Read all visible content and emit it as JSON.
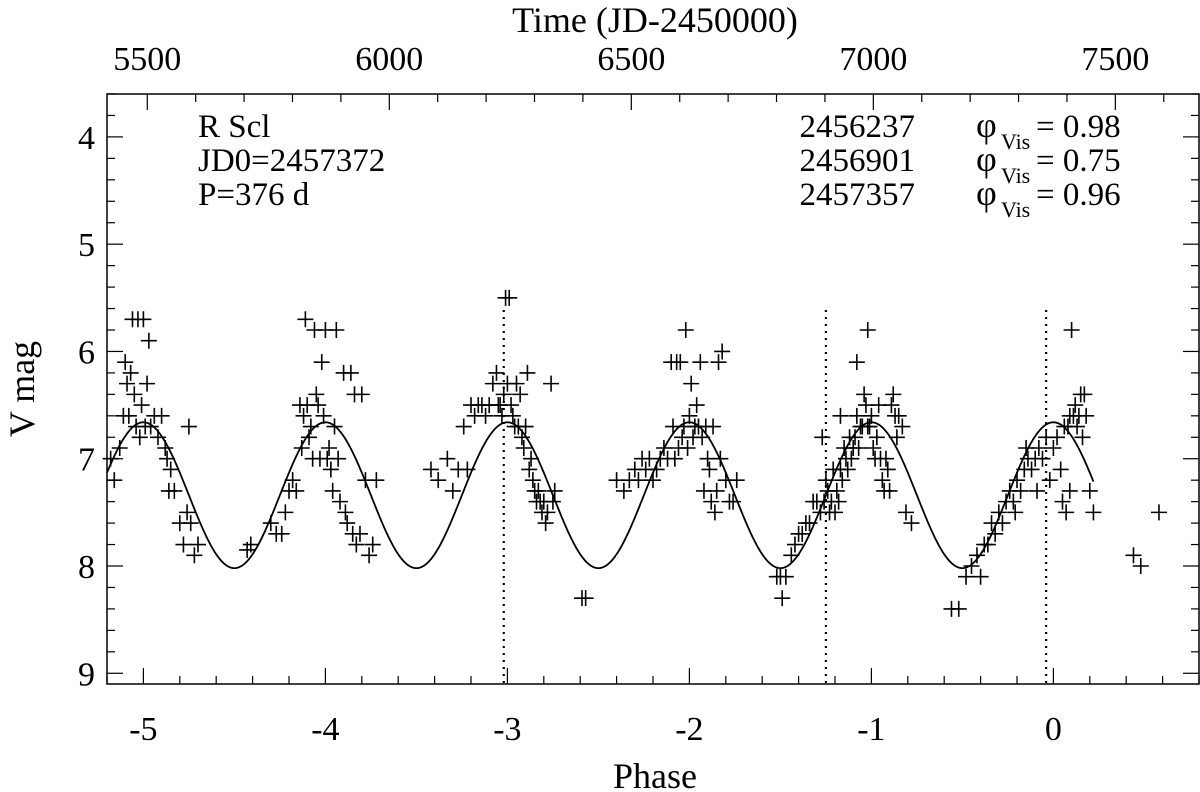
{
  "chart_data": {
    "type": "scatter",
    "title": "",
    "xlabel": "Phase",
    "ylabel": "V mag",
    "top_xlabel": "Time (JD-2450000)",
    "xlim": [
      -5.2,
      0.8
    ],
    "ylim": [
      9.1,
      3.6
    ],
    "x_ticks": [
      -5,
      -4,
      -3,
      -2,
      -1,
      0
    ],
    "x_tick_labels": [
      "-5",
      "-4",
      "-3",
      "-2",
      "-1",
      "0"
    ],
    "y_ticks": [
      4,
      5,
      6,
      7,
      8,
      9
    ],
    "y_tick_labels": [
      "4",
      "5",
      "6",
      "7",
      "8",
      "9"
    ],
    "top_ticks": [
      5500,
      6000,
      6500,
      7000,
      7500
    ],
    "top_tick_labels": [
      "5500",
      "6000",
      "6500",
      "7000",
      "7500"
    ],
    "top_axis_map": {
      "jd_at_phase0": 7372,
      "period_days": 376
    },
    "info_left": [
      "R Scl",
      "JD0=2457372",
      "P=376 d"
    ],
    "epochs": [
      {
        "jd": "2456237",
        "phi_symbol": "φ",
        "phi_sub": "Vis",
        "phi_value": "= 0.98",
        "phase": -3.02
      },
      {
        "jd": "2456901",
        "phi_symbol": "φ",
        "phi_sub": "Vis",
        "phi_value": "= 0.75",
        "phase": -1.25
      },
      {
        "jd": "2457357",
        "phi_symbol": "φ",
        "phi_sub": "Vis",
        "phi_value": "= 0.96",
        "phase": -0.04
      }
    ],
    "model_curve": {
      "mean": 7.34,
      "amplitude": 0.68,
      "phase_min_mag": 0.0,
      "x_range": [
        -5.2,
        0.22
      ]
    },
    "series": [
      {
        "name": "V observations",
        "marker": "plus",
        "points": [
          [
            -5.18,
            7.0
          ],
          [
            -5.16,
            7.2
          ],
          [
            -5.13,
            6.9
          ],
          [
            -5.11,
            6.6
          ],
          [
            -5.1,
            6.1
          ],
          [
            -5.09,
            6.3
          ],
          [
            -5.08,
            6.6
          ],
          [
            -5.07,
            6.2
          ],
          [
            -5.06,
            5.7
          ],
          [
            -5.05,
            6.4
          ],
          [
            -5.04,
            6.7
          ],
          [
            -5.03,
            5.7
          ],
          [
            -5.02,
            6.8
          ],
          [
            -5.01,
            6.5
          ],
          [
            -5.0,
            5.7
          ],
          [
            -4.99,
            6.7
          ],
          [
            -4.98,
            6.3
          ],
          [
            -4.97,
            5.9
          ],
          [
            -4.96,
            6.7
          ],
          [
            -4.94,
            6.6
          ],
          [
            -4.92,
            6.8
          ],
          [
            -4.9,
            6.6
          ],
          [
            -4.88,
            6.9
          ],
          [
            -4.87,
            7.0
          ],
          [
            -4.86,
            7.3
          ],
          [
            -4.85,
            7.1
          ],
          [
            -4.83,
            7.3
          ],
          [
            -4.8,
            7.6
          ],
          [
            -4.78,
            7.8
          ],
          [
            -4.76,
            7.5
          ],
          [
            -4.75,
            6.7
          ],
          [
            -4.74,
            7.6
          ],
          [
            -4.72,
            7.9
          ],
          [
            -4.7,
            7.8
          ],
          [
            -4.43,
            7.85
          ],
          [
            -4.41,
            7.8
          ],
          [
            -4.3,
            7.6
          ],
          [
            -4.27,
            7.7
          ],
          [
            -4.24,
            7.7
          ],
          [
            -4.22,
            7.5
          ],
          [
            -4.2,
            7.3
          ],
          [
            -4.18,
            7.2
          ],
          [
            -4.16,
            7.3
          ],
          [
            -4.14,
            6.5
          ],
          [
            -4.13,
            6.9
          ],
          [
            -4.12,
            6.6
          ],
          [
            -4.11,
            5.7
          ],
          [
            -4.1,
            6.5
          ],
          [
            -4.09,
            6.8
          ],
          [
            -4.08,
            6.7
          ],
          [
            -4.07,
            7.0
          ],
          [
            -4.06,
            5.8
          ],
          [
            -4.05,
            6.4
          ],
          [
            -4.04,
            6.5
          ],
          [
            -4.03,
            7.0
          ],
          [
            -4.02,
            6.1
          ],
          [
            -4.01,
            6.6
          ],
          [
            -4.0,
            5.8
          ],
          [
            -3.99,
            7.0
          ],
          [
            -3.98,
            6.9
          ],
          [
            -3.97,
            7.1
          ],
          [
            -3.96,
            7.3
          ],
          [
            -3.95,
            6.7
          ],
          [
            -3.94,
            5.8
          ],
          [
            -3.93,
            7.0
          ],
          [
            -3.92,
            7.4
          ],
          [
            -3.9,
            6.2
          ],
          [
            -3.89,
            7.5
          ],
          [
            -3.88,
            7.6
          ],
          [
            -3.86,
            6.2
          ],
          [
            -3.85,
            7.7
          ],
          [
            -3.84,
            6.4
          ],
          [
            -3.83,
            7.8
          ],
          [
            -3.81,
            7.7
          ],
          [
            -3.8,
            6.4
          ],
          [
            -3.78,
            7.2
          ],
          [
            -3.76,
            7.9
          ],
          [
            -3.74,
            7.8
          ],
          [
            -3.72,
            7.2
          ],
          [
            -3.42,
            7.1
          ],
          [
            -3.38,
            7.2
          ],
          [
            -3.33,
            7.0
          ],
          [
            -3.3,
            7.3
          ],
          [
            -3.27,
            7.1
          ],
          [
            -3.24,
            6.7
          ],
          [
            -3.22,
            7.1
          ],
          [
            -3.2,
            6.5
          ],
          [
            -3.18,
            6.6
          ],
          [
            -3.16,
            6.5
          ],
          [
            -3.14,
            6.5
          ],
          [
            -3.12,
            6.6
          ],
          [
            -3.1,
            6.5
          ],
          [
            -3.08,
            6.3
          ],
          [
            -3.06,
            6.2
          ],
          [
            -3.05,
            6.5
          ],
          [
            -3.04,
            6.5
          ],
          [
            -3.03,
            6.6
          ],
          [
            -3.02,
            6.4
          ],
          [
            -3.01,
            5.5
          ],
          [
            -3.0,
            6.3
          ],
          [
            -2.99,
            5.5
          ],
          [
            -2.98,
            6.5
          ],
          [
            -2.97,
            6.6
          ],
          [
            -2.96,
            6.7
          ],
          [
            -2.95,
            6.3
          ],
          [
            -2.94,
            6.7
          ],
          [
            -2.93,
            6.4
          ],
          [
            -2.92,
            6.8
          ],
          [
            -2.91,
            6.9
          ],
          [
            -2.9,
            6.7
          ],
          [
            -2.89,
            6.2
          ],
          [
            -2.88,
            7.1
          ],
          [
            -2.87,
            7.0
          ],
          [
            -2.86,
            7.2
          ],
          [
            -2.85,
            7.3
          ],
          [
            -2.84,
            7.4
          ],
          [
            -2.83,
            7.3
          ],
          [
            -2.82,
            7.4
          ],
          [
            -2.81,
            7.5
          ],
          [
            -2.8,
            7.4
          ],
          [
            -2.79,
            7.6
          ],
          [
            -2.78,
            7.5
          ],
          [
            -2.76,
            6.3
          ],
          [
            -2.75,
            7.4
          ],
          [
            -2.74,
            7.3
          ],
          [
            -2.59,
            8.3
          ],
          [
            -2.57,
            8.3
          ],
          [
            -2.4,
            7.2
          ],
          [
            -2.36,
            7.3
          ],
          [
            -2.33,
            7.2
          ],
          [
            -2.3,
            7.1
          ],
          [
            -2.28,
            7.2
          ],
          [
            -2.26,
            7.0
          ],
          [
            -2.24,
            7.1
          ],
          [
            -2.22,
            7.0
          ],
          [
            -2.2,
            7.2
          ],
          [
            -2.18,
            7.1
          ],
          [
            -2.16,
            7.0
          ],
          [
            -2.14,
            6.9
          ],
          [
            -2.12,
            7.0
          ],
          [
            -2.1,
            6.1
          ],
          [
            -2.09,
            6.7
          ],
          [
            -2.08,
            7.0
          ],
          [
            -2.07,
            6.1
          ],
          [
            -2.06,
            6.9
          ],
          [
            -2.05,
            6.1
          ],
          [
            -2.04,
            6.8
          ],
          [
            -2.03,
            6.7
          ],
          [
            -2.02,
            5.8
          ],
          [
            -2.01,
            6.9
          ],
          [
            -2.0,
            6.6
          ],
          [
            -1.99,
            6.3
          ],
          [
            -1.98,
            6.8
          ],
          [
            -1.97,
            6.7
          ],
          [
            -1.96,
            6.5
          ],
          [
            -1.95,
            6.7
          ],
          [
            -1.94,
            6.1
          ],
          [
            -1.93,
            6.8
          ],
          [
            -1.92,
            7.3
          ],
          [
            -1.91,
            6.7
          ],
          [
            -1.9,
            7.0
          ],
          [
            -1.89,
            7.1
          ],
          [
            -1.88,
            7.4
          ],
          [
            -1.87,
            6.7
          ],
          [
            -1.86,
            7.5
          ],
          [
            -1.85,
            7.3
          ],
          [
            -1.84,
            6.1
          ],
          [
            -1.83,
            7.0
          ],
          [
            -1.82,
            6.0
          ],
          [
            -1.8,
            7.2
          ],
          [
            -1.78,
            7.4
          ],
          [
            -1.76,
            7.4
          ],
          [
            -1.74,
            7.2
          ],
          [
            -1.52,
            8.1
          ],
          [
            -1.5,
            8.1
          ],
          [
            -1.47,
            8.1
          ],
          [
            -1.44,
            7.9
          ],
          [
            -1.42,
            7.8
          ],
          [
            -1.4,
            7.7
          ],
          [
            -1.38,
            7.7
          ],
          [
            -1.36,
            7.6
          ],
          [
            -1.34,
            7.6
          ],
          [
            -1.32,
            7.4
          ],
          [
            -1.3,
            7.4
          ],
          [
            -1.28,
            7.5
          ],
          [
            -1.27,
            6.8
          ],
          [
            -1.26,
            7.4
          ],
          [
            -1.25,
            7.2
          ],
          [
            -1.24,
            7.3
          ],
          [
            -1.23,
            7.5
          ],
          [
            -1.22,
            7.4
          ],
          [
            -1.21,
            7.1
          ],
          [
            -1.2,
            7.5
          ],
          [
            -1.19,
            7.3
          ],
          [
            -1.18,
            7.4
          ],
          [
            -1.17,
            7.1
          ],
          [
            -1.16,
            7.2
          ],
          [
            -1.15,
            6.9
          ],
          [
            -1.14,
            7.0
          ],
          [
            -1.13,
            7.1
          ],
          [
            -1.12,
            6.8
          ],
          [
            -1.11,
            7.0
          ],
          [
            -1.1,
            6.9
          ],
          [
            -1.09,
            6.8
          ],
          [
            -1.08,
            6.6
          ],
          [
            -1.07,
            6.9
          ],
          [
            -1.06,
            6.7
          ],
          [
            -1.05,
            6.7
          ],
          [
            -1.04,
            6.4
          ],
          [
            -1.03,
            6.5
          ],
          [
            -1.02,
            6.7
          ],
          [
            -1.01,
            6.7
          ],
          [
            -1.0,
            6.6
          ],
          [
            -0.99,
            6.9
          ],
          [
            -0.98,
            7.0
          ],
          [
            -0.97,
            6.8
          ],
          [
            -0.96,
            6.5
          ],
          [
            -0.95,
            7.0
          ],
          [
            -0.94,
            7.2
          ],
          [
            -0.93,
            7.3
          ],
          [
            -0.92,
            7.0
          ],
          [
            -0.91,
            7.1
          ],
          [
            -0.9,
            7.3
          ],
          [
            -0.89,
            6.5
          ],
          [
            -0.88,
            6.4
          ],
          [
            -0.87,
            6.6
          ],
          [
            -0.86,
            6.8
          ],
          [
            -0.85,
            6.6
          ],
          [
            -0.83,
            6.7
          ],
          [
            -0.81,
            7.5
          ],
          [
            -0.78,
            7.6
          ],
          [
            -1.49,
            8.3
          ],
          [
            -1.17,
            6.6
          ],
          [
            -1.08,
            6.1
          ],
          [
            -1.02,
            5.8
          ],
          [
            -0.56,
            8.4
          ],
          [
            -0.52,
            8.4
          ],
          [
            -0.48,
            8.1
          ],
          [
            -0.45,
            8.0
          ],
          [
            -0.42,
            7.9
          ],
          [
            -0.4,
            8.1
          ],
          [
            -0.38,
            7.8
          ],
          [
            -0.36,
            7.8
          ],
          [
            -0.34,
            7.6
          ],
          [
            -0.32,
            7.7
          ],
          [
            -0.3,
            7.5
          ],
          [
            -0.28,
            7.6
          ],
          [
            -0.26,
            7.4
          ],
          [
            -0.24,
            7.3
          ],
          [
            -0.22,
            7.4
          ],
          [
            -0.2,
            7.2
          ],
          [
            -0.18,
            7.3
          ],
          [
            -0.16,
            7.1
          ],
          [
            -0.14,
            7.0
          ],
          [
            -0.12,
            7.1
          ],
          [
            -0.1,
            7.0
          ],
          [
            -0.08,
            6.9
          ],
          [
            -0.06,
            7.0
          ],
          [
            -0.04,
            6.8
          ],
          [
            -0.02,
            7.2
          ],
          [
            0.0,
            6.9
          ],
          [
            0.02,
            6.8
          ],
          [
            0.04,
            7.1
          ],
          [
            0.05,
            7.4
          ],
          [
            0.06,
            6.7
          ],
          [
            0.07,
            7.5
          ],
          [
            0.08,
            6.7
          ],
          [
            0.09,
            6.6
          ],
          [
            0.1,
            5.8
          ],
          [
            0.11,
            6.6
          ],
          [
            0.12,
            6.5
          ],
          [
            0.13,
            6.7
          ],
          [
            0.14,
            6.6
          ],
          [
            0.15,
            6.4
          ],
          [
            0.16,
            6.8
          ],
          [
            0.18,
            6.6
          ],
          [
            0.2,
            7.3
          ],
          [
            0.22,
            7.5
          ],
          [
            0.44,
            7.9
          ],
          [
            0.48,
            8.0
          ],
          [
            0.58,
            7.5
          ],
          [
            -0.21,
            7.5
          ],
          [
            -0.15,
            6.9
          ],
          [
            -0.09,
            7.3
          ],
          [
            0.09,
            7.3
          ],
          [
            0.17,
            6.4
          ]
        ]
      }
    ]
  }
}
